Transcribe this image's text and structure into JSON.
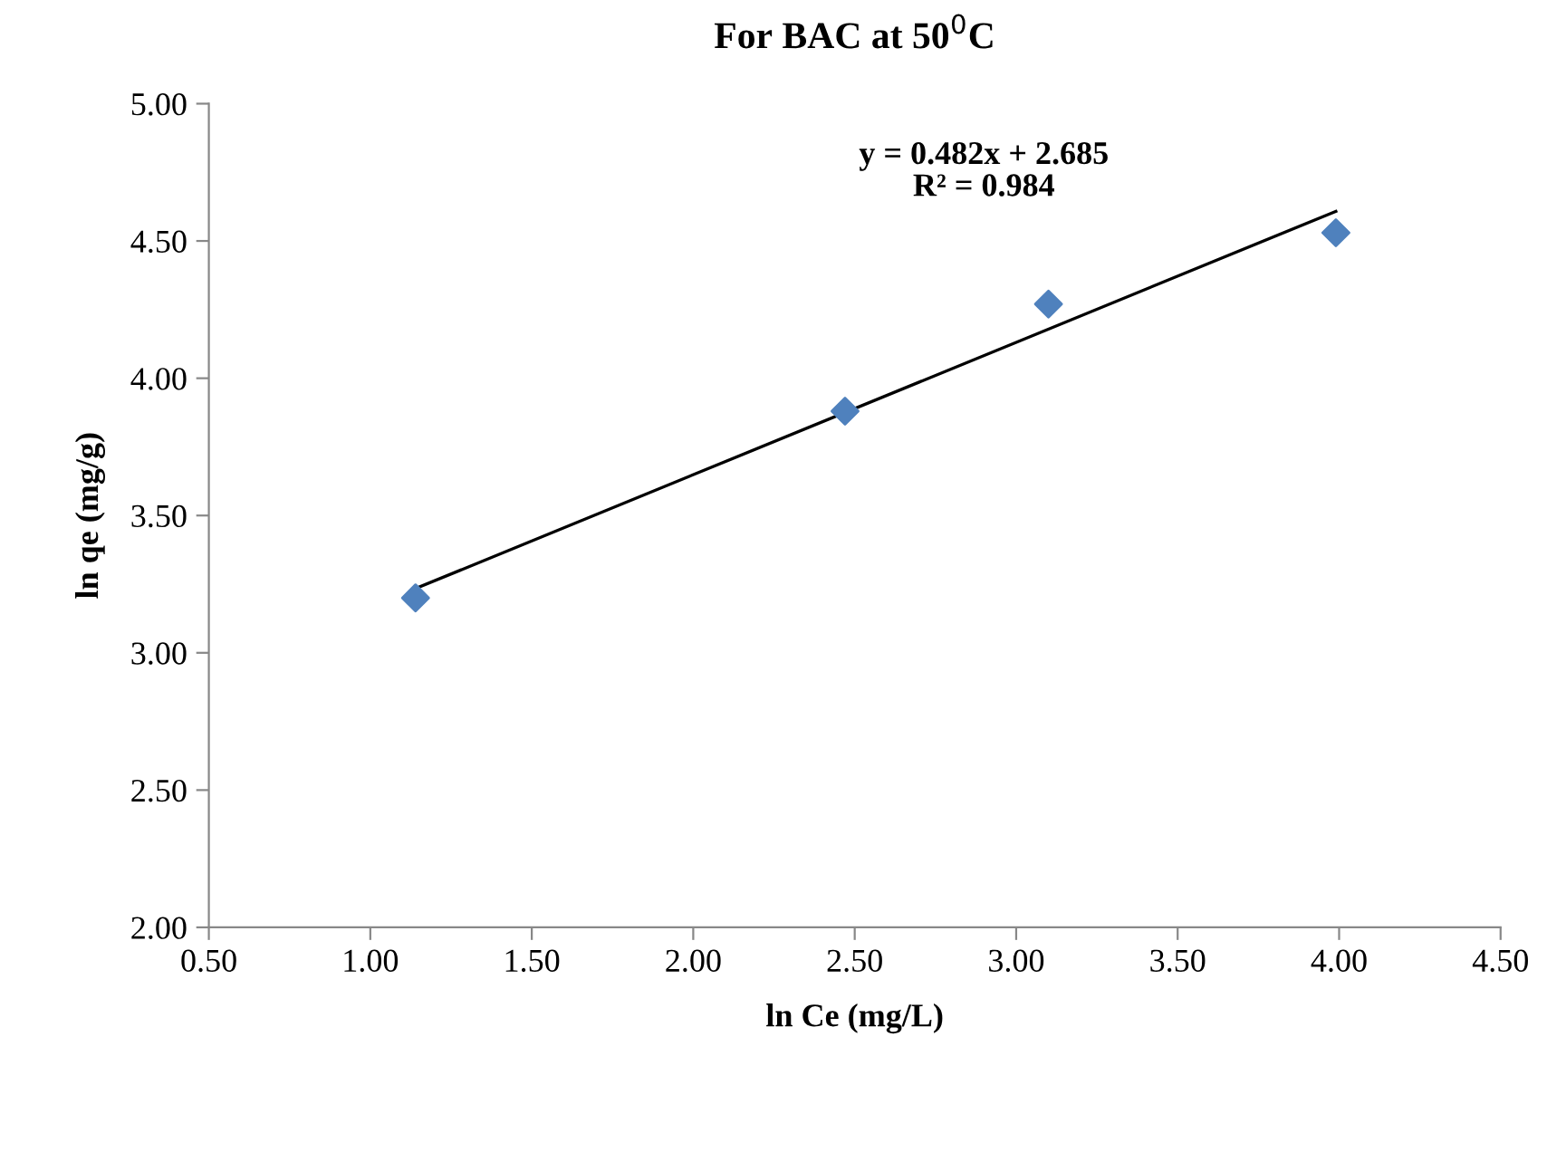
{
  "chart_data": {
    "type": "scatter",
    "title": "For BAC at 50$^{0}$C",
    "xlabel": "ln Ce (mg/L)",
    "ylabel": "ln qe (mg/g)",
    "xlim": [
      0.5,
      4.5
    ],
    "xticks": [
      {
        "value": 0.5,
        "label": "0.50"
      },
      {
        "value": 1.0,
        "label": "1.00"
      },
      {
        "value": 1.5,
        "label": "1.50"
      },
      {
        "value": 2.0,
        "label": "2.00"
      },
      {
        "value": 2.5,
        "label": "2.50"
      },
      {
        "value": 3.0,
        "label": "3.00"
      },
      {
        "value": 3.5,
        "label": "3.50"
      },
      {
        "value": 4.0,
        "label": "4.00"
      },
      {
        "value": 4.5,
        "label": "4.50"
      }
    ],
    "ylim": [
      2.0,
      5.0
    ],
    "yticks": [
      {
        "value": 2.0,
        "label": "2.00"
      },
      {
        "value": 2.5,
        "label": "2.50"
      },
      {
        "value": 3.0,
        "label": "3.00"
      },
      {
        "value": 3.5,
        "label": "3.50"
      },
      {
        "value": 4.0,
        "label": "4.00"
      },
      {
        "value": 4.5,
        "label": "4.50"
      },
      {
        "value": 5.0,
        "label": "5.00"
      }
    ],
    "grid": false,
    "series": [
      {
        "color": "#4f81bd",
        "marker": "diamond",
        "x": [
          1.14,
          2.47,
          3.1,
          3.99
        ],
        "values": [
          3.2,
          3.88,
          4.27,
          4.53
        ]
      },
      {
        "type": "line",
        "color": "#000000",
        "marker": "none",
        "line_style": "solid",
        "x": [
          1.14,
          3.99
        ],
        "values": [
          3.234,
          4.608
        ]
      }
    ],
    "annotations": [
      "y = 0.482x + 2.685\nR² = 0.984"
    ]
  }
}
